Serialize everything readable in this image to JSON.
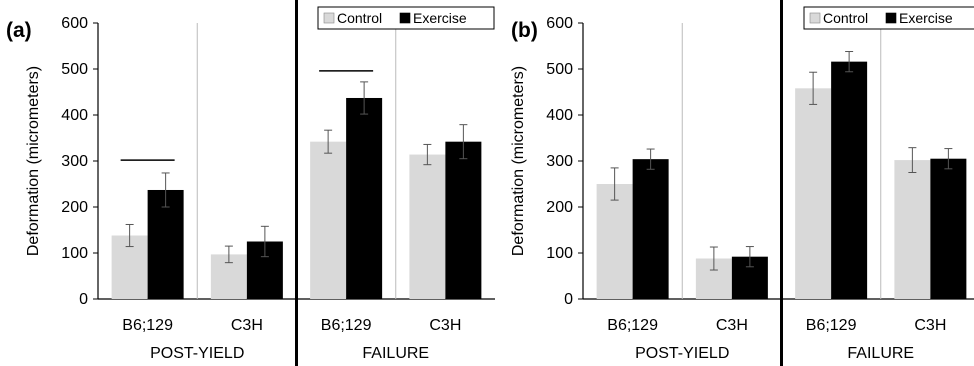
{
  "chart_data": [
    {
      "type": "bar",
      "panel_label": "(a)",
      "ylabel": "Deformation (micrometers)",
      "ylim": [
        0,
        600
      ],
      "yticks": [
        "0",
        "100",
        "200",
        "300",
        "400",
        "500",
        "600"
      ],
      "groups": [
        {
          "name": "POST-YIELD",
          "categories": [
            "B6;129",
            "C3H"
          ]
        },
        {
          "name": "FAILURE",
          "categories": [
            "B6;129",
            "C3H"
          ]
        }
      ],
      "series": [
        {
          "name": "Control",
          "color": "#d9d9d9",
          "values": [
            138,
            97,
            342,
            314
          ],
          "errors": [
            24,
            18,
            25,
            22
          ]
        },
        {
          "name": "Exercise",
          "color": "#000000",
          "values": [
            237,
            125,
            437,
            342
          ],
          "errors": [
            37,
            33,
            35,
            37
          ]
        }
      ],
      "significance_lines": [
        {
          "x_index": 0,
          "y": 302
        },
        {
          "x_index": 2,
          "y": 496
        }
      ],
      "legend_position": "top-right",
      "grid": false
    },
    {
      "type": "bar",
      "panel_label": "(b)",
      "ylabel": "Deformation (micrometers)",
      "ylim": [
        0,
        600
      ],
      "yticks": [
        "0",
        "100",
        "200",
        "300",
        "400",
        "500",
        "600"
      ],
      "groups": [
        {
          "name": "POST-YIELD",
          "categories": [
            "B6;129",
            "C3H"
          ]
        },
        {
          "name": "FAILURE",
          "categories": [
            "B6;129",
            "C3H"
          ]
        }
      ],
      "series": [
        {
          "name": "Control",
          "color": "#d9d9d9",
          "values": [
            250,
            88,
            458,
            302
          ],
          "errors": [
            35,
            25,
            35,
            27
          ]
        },
        {
          "name": "Exercise",
          "color": "#000000",
          "values": [
            304,
            92,
            516,
            305
          ],
          "errors": [
            22,
            22,
            22,
            22
          ]
        }
      ],
      "significance_lines": [],
      "legend_position": "top-right",
      "grid": false
    }
  ]
}
